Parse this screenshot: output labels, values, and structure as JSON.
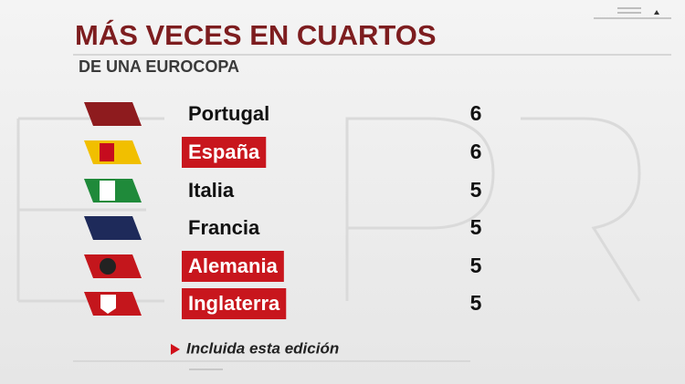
{
  "header": {
    "title": "MÁS VECES EN CUARTOS",
    "subtitle": "DE UNA EUROCOPA"
  },
  "table": {
    "rows": [
      {
        "team": "Portugal",
        "value": 6,
        "highlight": false
      },
      {
        "team": "España",
        "value": 6,
        "highlight": true
      },
      {
        "team": "Italia",
        "value": 5,
        "highlight": false
      },
      {
        "team": "Francia",
        "value": 5,
        "highlight": false
      },
      {
        "team": "Alemania",
        "value": 5,
        "highlight": true
      },
      {
        "team": "Inglaterra",
        "value": 5,
        "highlight": true
      }
    ]
  },
  "footnote": "Incluida esta edición"
}
